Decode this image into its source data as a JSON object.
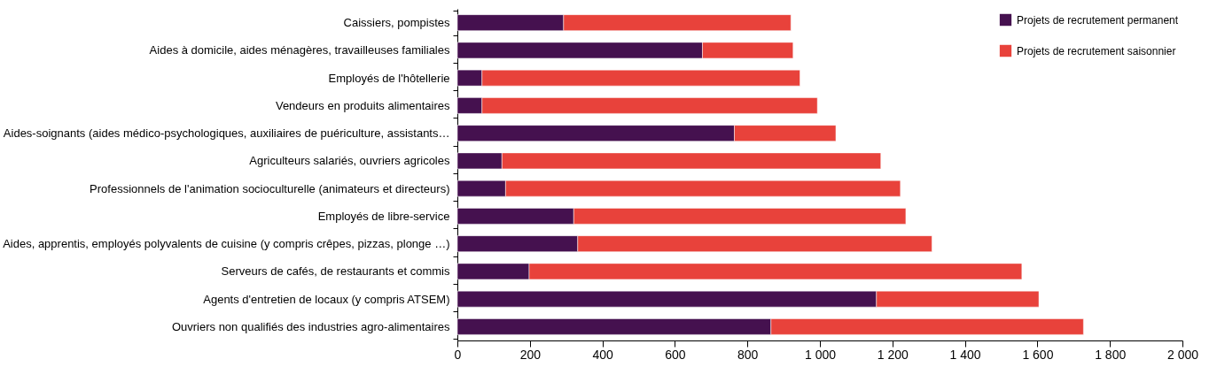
{
  "chart_data": {
    "type": "bar",
    "orientation": "horizontal",
    "stacked": true,
    "categories": [
      "Caissiers, pompistes",
      "Aides à domicile, aides ménagères, travailleuses familiales",
      "Employés de l'hôtellerie",
      "Vendeurs en produits alimentaires",
      "Aides-soignants (aides médico-psychologiques, auxiliaires de puériculture, assistants…",
      "Agriculteurs salariés, ouvriers agricoles",
      "Professionnels de l'animation socioculturelle (animateurs et directeurs)",
      "Employés de libre-service",
      "Aides, apprentis, employés polyvalents de cuisine (y compris crêpes, pizzas, plonge …)",
      "Serveurs de cafés, de restaurants et commis",
      "Agents d'entretien de locaux (y compris ATSEM)",
      "Ouvriers non qualifiés des industries agro-alimentaires"
    ],
    "series": [
      {
        "name": "Projets de recrutement permanent",
        "color": "#45114f",
        "values": [
          293,
          676,
          68,
          68,
          764,
          123,
          133,
          321,
          332,
          198,
          1156,
          865
        ]
      },
      {
        "name": "Projets de recrutement saisonnier",
        "color": "#e8423b",
        "values": [
          627,
          250,
          877,
          925,
          280,
          1045,
          1089,
          916,
          977,
          1359,
          448,
          862
        ]
      }
    ],
    "xlim": [
      0,
      2000
    ],
    "xticks": [
      0,
      200,
      400,
      600,
      800,
      {
        "value": 1000,
        "label": "1 000"
      },
      {
        "value": 1200,
        "label": "1 200"
      },
      {
        "value": 1400,
        "label": "1 400"
      },
      {
        "value": 1600,
        "label": "1 600"
      },
      {
        "value": 1800,
        "label": "1 800"
      },
      {
        "value": 2000,
        "label": "2 000"
      }
    ],
    "grid": false,
    "legend": "top right"
  }
}
